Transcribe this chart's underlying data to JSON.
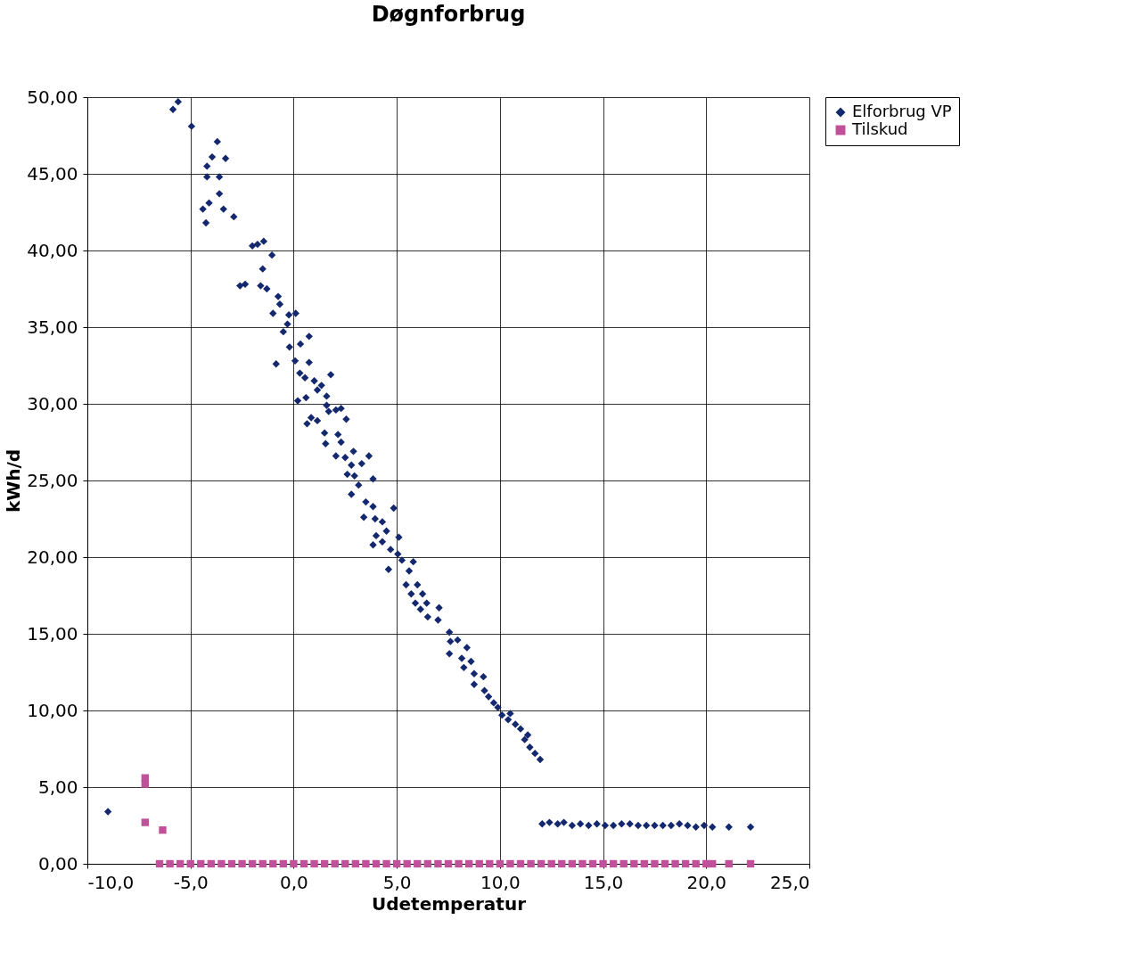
{
  "chart_data": {
    "type": "scatter",
    "title": "Døgnforbrug",
    "xlabel": "Udetemperatur",
    "ylabel": "kWh/d",
    "legend": "right",
    "grid": true,
    "xlim": [
      -10,
      25
    ],
    "xticks": [
      {
        "value": -10,
        "label": "-10,0"
      },
      {
        "value": -5,
        "label": "-5,0"
      },
      {
        "value": 0,
        "label": "0,0"
      },
      {
        "value": 5,
        "label": "5,0"
      },
      {
        "value": 10,
        "label": "10,0"
      },
      {
        "value": 15,
        "label": "15,0"
      },
      {
        "value": 20,
        "label": "20,0"
      },
      {
        "value": 25,
        "label": "25,0"
      }
    ],
    "ylim": [
      0,
      50
    ],
    "yticks": [
      {
        "value": 0,
        "label": "0,00"
      },
      {
        "value": 5,
        "label": "5,00"
      },
      {
        "value": 10,
        "label": "10,00"
      },
      {
        "value": 15,
        "label": "15,00"
      },
      {
        "value": 20,
        "label": "20,00"
      },
      {
        "value": 25,
        "label": "25,00"
      },
      {
        "value": 30,
        "label": "30,00"
      },
      {
        "value": 35,
        "label": "35,00"
      },
      {
        "value": 40,
        "label": "40,00"
      },
      {
        "value": 45,
        "label": "45,00"
      },
      {
        "value": 50,
        "label": "50,00"
      }
    ],
    "series": [
      {
        "name": "Elforbrug VP",
        "color": "#14286e",
        "marker": "diamond",
        "x": [
          -9.0,
          -5.85,
          -5.6,
          -4.95,
          -3.7,
          -3.95,
          -3.3,
          -4.2,
          -3.6,
          -4.2,
          -3.6,
          -4.1,
          -4.4,
          -3.4,
          -2.9,
          -4.25,
          -2.0,
          -1.75,
          -1.45,
          -1.05,
          -1.5,
          -2.6,
          -2.35,
          -1.6,
          -1.3,
          -0.75,
          -1.0,
          -0.67,
          -0.23,
          0.1,
          -0.5,
          -0.3,
          0.75,
          -0.2,
          0.33,
          -0.85,
          0.07,
          0.75,
          0.3,
          0.55,
          1.0,
          1.8,
          1.35,
          1.6,
          0.2,
          0.6,
          1.15,
          1.6,
          1.7,
          2.05,
          2.3,
          2.55,
          0.85,
          0.65,
          1.15,
          1.5,
          2.15,
          1.55,
          2.3,
          2.9,
          2.05,
          2.5,
          3.65,
          3.3,
          2.8,
          2.6,
          2.95,
          3.85,
          3.15,
          2.8,
          3.5,
          3.85,
          4.85,
          3.4,
          3.95,
          4.3,
          4.5,
          4.0,
          5.1,
          4.3,
          3.85,
          4.7,
          5.05,
          5.25,
          5.8,
          4.6,
          5.6,
          5.45,
          6.0,
          5.7,
          6.25,
          5.9,
          6.45,
          6.15,
          7.05,
          6.5,
          7.0,
          7.55,
          7.6,
          7.95,
          8.4,
          7.55,
          8.15,
          8.6,
          8.25,
          8.75,
          9.2,
          8.75,
          9.25,
          9.45,
          9.7,
          9.9,
          10.1,
          10.5,
          10.4,
          10.75,
          11.0,
          11.35,
          11.2,
          11.45,
          11.7,
          11.95,
          12.05,
          12.4,
          12.8,
          13.1,
          13.5,
          13.9,
          14.3,
          14.7,
          15.1,
          15.5,
          15.9,
          16.3,
          16.7,
          17.1,
          17.5,
          17.9,
          18.3,
          18.7,
          19.1,
          19.5,
          19.9,
          20.3,
          21.1,
          22.15
        ],
        "values": [
          3.4,
          49.2,
          49.7,
          48.1,
          47.1,
          46.1,
          46.0,
          45.5,
          44.8,
          44.8,
          43.7,
          43.1,
          42.7,
          42.7,
          42.2,
          41.8,
          40.3,
          40.4,
          40.6,
          39.7,
          38.8,
          37.7,
          37.8,
          37.7,
          37.5,
          37.0,
          35.9,
          36.5,
          35.8,
          35.9,
          34.7,
          35.2,
          34.4,
          33.7,
          33.9,
          32.6,
          32.8,
          32.7,
          32.0,
          31.7,
          31.5,
          31.9,
          31.2,
          30.5,
          30.2,
          30.4,
          30.9,
          29.9,
          29.5,
          29.6,
          29.7,
          29.0,
          29.1,
          28.7,
          28.9,
          28.1,
          28.0,
          27.4,
          27.5,
          26.9,
          26.6,
          26.5,
          26.6,
          26.1,
          26.0,
          25.4,
          25.3,
          25.1,
          24.7,
          24.1,
          23.6,
          23.3,
          23.2,
          22.6,
          22.5,
          22.3,
          21.7,
          21.4,
          21.3,
          21.0,
          20.8,
          20.5,
          20.2,
          19.8,
          19.7,
          19.2,
          19.1,
          18.2,
          18.2,
          17.6,
          17.6,
          17.0,
          17.0,
          16.6,
          16.7,
          16.1,
          15.9,
          15.1,
          14.5,
          14.6,
          14.1,
          13.7,
          13.4,
          13.2,
          12.8,
          12.4,
          12.2,
          11.7,
          11.3,
          10.9,
          10.5,
          10.2,
          9.7,
          9.8,
          9.4,
          9.1,
          8.8,
          8.4,
          8.1,
          7.6,
          7.2,
          6.8,
          2.6,
          2.7,
          2.6,
          2.7,
          2.5,
          2.6,
          2.5,
          2.6,
          2.5,
          2.5,
          2.6,
          2.6,
          2.5,
          2.5,
          2.5,
          2.5,
          2.5,
          2.6,
          2.5,
          2.4,
          2.5,
          2.4,
          2.4,
          2.4
        ]
      },
      {
        "name": "Tilskud",
        "color": "#c0509a",
        "marker": "square",
        "x": [
          -7.2,
          -7.2,
          -7.2,
          -6.35,
          -6.5,
          -6.0,
          -5.5,
          -5.0,
          -4.5,
          -4.0,
          -3.5,
          -3.0,
          -2.5,
          -2.0,
          -1.5,
          -1.0,
          -0.5,
          0.0,
          0.5,
          1.0,
          1.5,
          2.0,
          2.5,
          3.0,
          3.5,
          4.0,
          4.5,
          5.0,
          5.5,
          6.0,
          6.5,
          7.0,
          7.5,
          8.0,
          8.5,
          9.0,
          9.5,
          10.0,
          10.5,
          11.0,
          11.5,
          12.0,
          12.5,
          13.0,
          13.5,
          14.0,
          14.5,
          15.0,
          15.5,
          16.0,
          16.5,
          17.0,
          17.5,
          18.0,
          18.5,
          19.0,
          19.5,
          20.0,
          20.3,
          21.1,
          22.15
        ],
        "values": [
          5.6,
          5.2,
          2.7,
          2.2,
          0,
          0,
          0,
          0,
          0,
          0,
          0,
          0,
          0,
          0,
          0,
          0,
          0,
          0,
          0,
          0,
          0,
          0,
          0,
          0,
          0,
          0,
          0,
          0,
          0,
          0,
          0,
          0,
          0,
          0,
          0,
          0,
          0,
          0,
          0,
          0,
          0,
          0,
          0,
          0,
          0,
          0,
          0,
          0,
          0,
          0,
          0,
          0,
          0,
          0,
          0,
          0,
          0,
          0,
          0,
          0,
          0
        ]
      }
    ]
  }
}
